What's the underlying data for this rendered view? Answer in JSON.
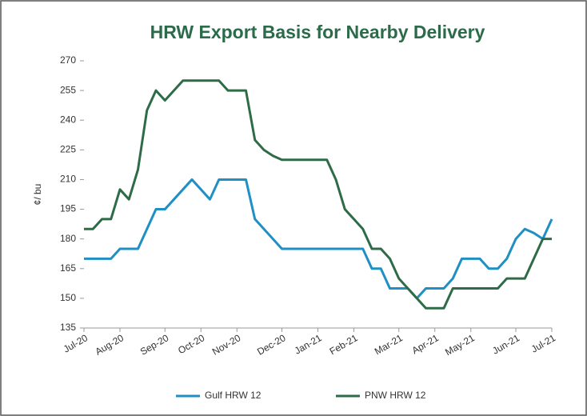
{
  "chart_data": {
    "type": "line",
    "title": "HRW Export Basis for Nearby Delivery",
    "ylabel": "¢/ bu",
    "categories": [
      "Jul-20",
      null,
      null,
      null,
      "Aug-20",
      null,
      null,
      null,
      null,
      "Sep-20",
      null,
      null,
      null,
      "Oct-20",
      null,
      null,
      null,
      "Nov-20",
      null,
      null,
      null,
      null,
      "Dec-20",
      null,
      null,
      null,
      "Jan-21",
      null,
      null,
      null,
      "Feb-21",
      null,
      null,
      null,
      null,
      "Mar-21",
      null,
      null,
      null,
      "Apr-21",
      null,
      null,
      null,
      "May-21",
      null,
      null,
      null,
      null,
      "Jun-21",
      null,
      null,
      null,
      "Jul-21"
    ],
    "series": [
      {
        "name": "Gulf HRW 12",
        "color": "#1f8fc4",
        "values": [
          170,
          170,
          170,
          170,
          175,
          175,
          175,
          185,
          195,
          195,
          200,
          205,
          210,
          205,
          200,
          210,
          210,
          210,
          210,
          190,
          185,
          180,
          175,
          175,
          175,
          175,
          175,
          175,
          175,
          175,
          175,
          175,
          165,
          165,
          155,
          155,
          155,
          150,
          155,
          155,
          155,
          160,
          170,
          170,
          170,
          165,
          165,
          170,
          180,
          185,
          183,
          180,
          190
        ]
      },
      {
        "name": "PNW HRW 12",
        "color": "#2e6b47",
        "values": [
          185,
          185,
          190,
          190,
          205,
          200,
          215,
          245,
          255,
          250,
          255,
          260,
          260,
          260,
          260,
          260,
          255,
          255,
          255,
          230,
          225,
          222,
          220,
          220,
          220,
          220,
          220,
          220,
          210,
          195,
          190,
          185,
          175,
          175,
          170,
          160,
          155,
          150,
          145,
          145,
          145,
          155,
          155,
          155,
          155,
          155,
          155,
          160,
          160,
          160,
          170,
          180,
          180
        ]
      }
    ],
    "ylim": [
      135,
      270
    ],
    "yticks": [
      135,
      150,
      165,
      180,
      195,
      210,
      225,
      240,
      255,
      270
    ],
    "grid": false,
    "legend": "bottom"
  }
}
